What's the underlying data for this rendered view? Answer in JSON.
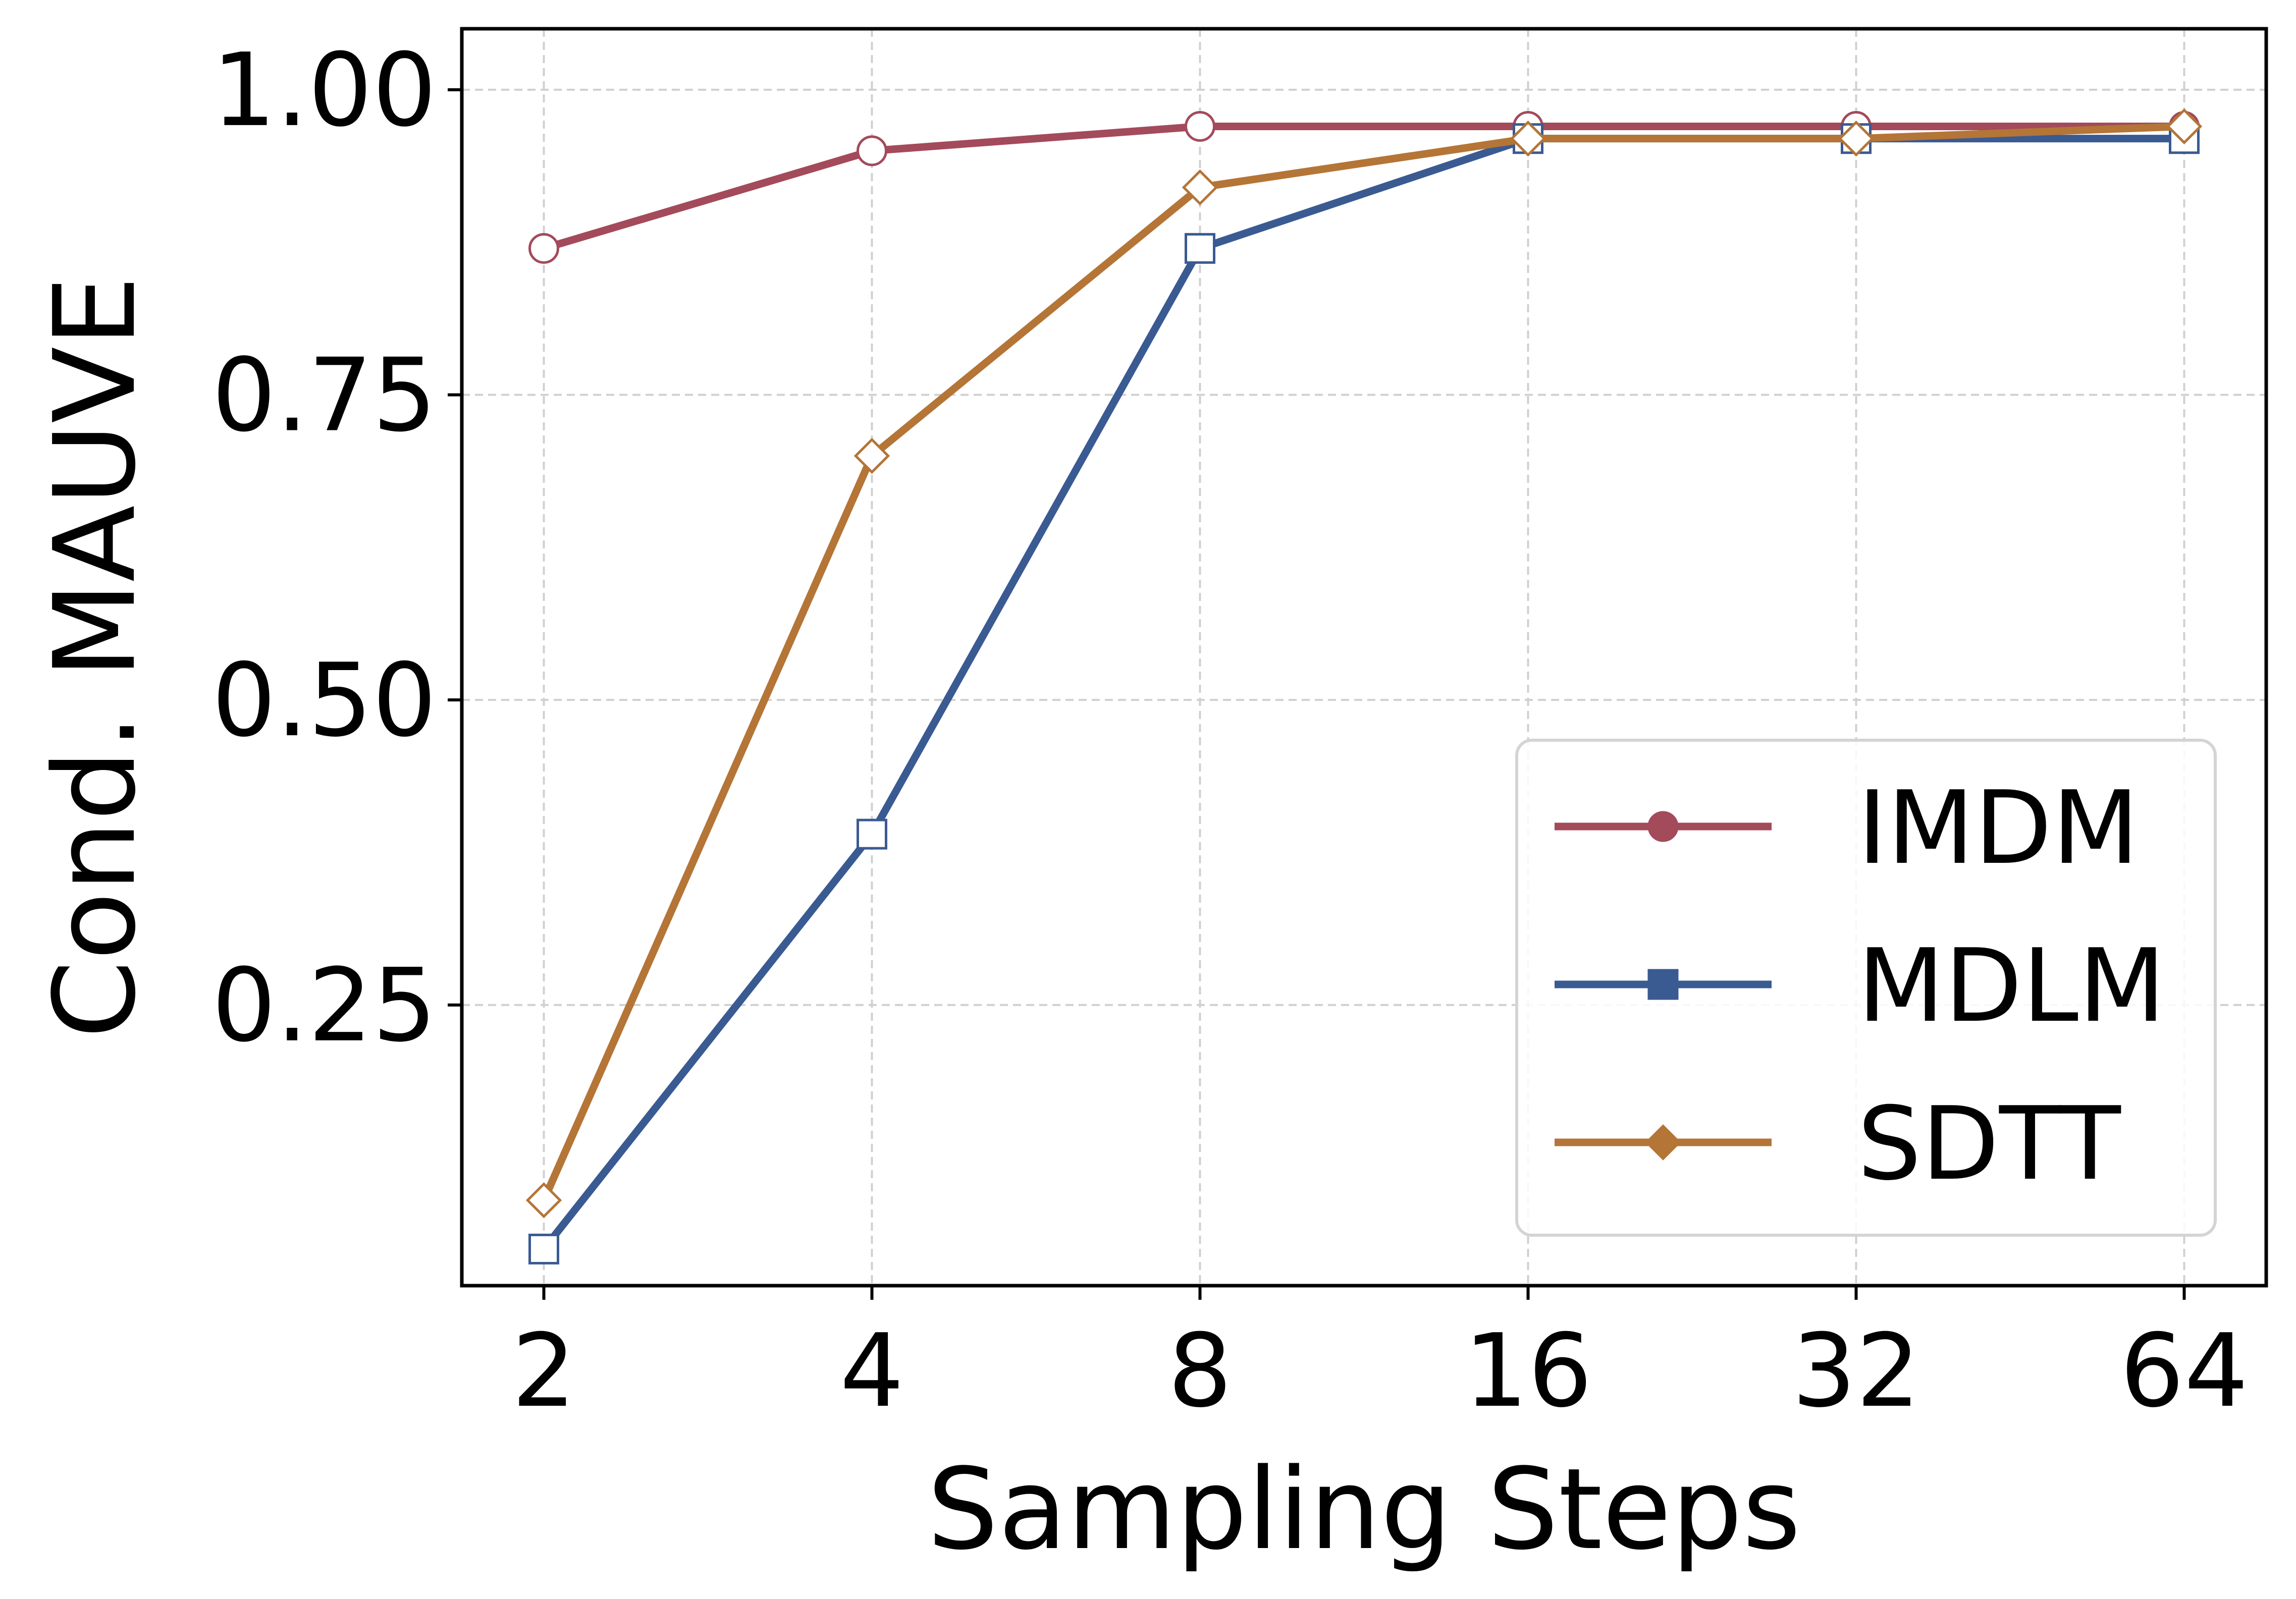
{
  "chart_data": {
    "type": "line",
    "title": "",
    "xlabel": "Sampling Steps",
    "ylabel": "Cond. MAUVE",
    "x_scale": "log2",
    "x": [
      2,
      4,
      8,
      16,
      32,
      64
    ],
    "x_tick_labels": [
      "2",
      "4",
      "8",
      "16",
      "32",
      "64"
    ],
    "ylim": [
      0.02,
      1.05
    ],
    "y_ticks": [
      0.25,
      0.5,
      0.75,
      1.0
    ],
    "y_tick_labels": [
      "0.25",
      "0.50",
      "0.75",
      "1.00"
    ],
    "grid": true,
    "legend_position": "lower-right",
    "series": [
      {
        "name": "IMDM",
        "marker": "circle",
        "color": "#A34A5B",
        "values": [
          0.87,
          0.95,
          0.97,
          0.97,
          0.97,
          0.97
        ]
      },
      {
        "name": "MDLM",
        "marker": "square",
        "color": "#3A5A92",
        "values": [
          0.05,
          0.39,
          0.87,
          0.96,
          0.96,
          0.96
        ]
      },
      {
        "name": "SDTT",
        "marker": "diamond",
        "color": "#B47537",
        "values": [
          0.09,
          0.7,
          0.92,
          0.96,
          0.96,
          0.97
        ]
      }
    ]
  }
}
